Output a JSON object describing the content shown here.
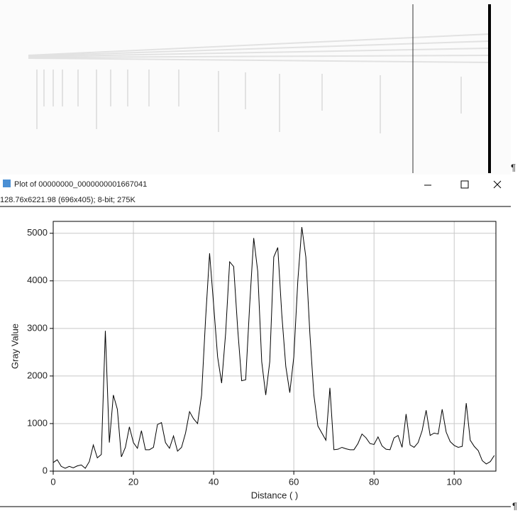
{
  "window": {
    "title": "Plot of 00000000_0000000001667041",
    "info": "128.76x6221.98 (696x405); 8-bit; 275K",
    "pilcrow_top": "¶",
    "pilcrow_bottom": "¶"
  },
  "chart_data": {
    "type": "line",
    "x_label": "Distance ( )",
    "y_label": "Gray Value",
    "color": "#000000",
    "grid": true,
    "x": [
      0,
      1,
      2,
      3,
      4,
      5,
      6,
      7,
      8,
      9,
      10,
      11,
      12,
      13,
      14,
      15,
      16,
      17,
      18,
      19,
      20,
      21,
      22,
      23,
      24,
      25,
      26,
      27,
      28,
      29,
      30,
      31,
      32,
      33,
      34,
      35,
      36,
      37,
      38,
      39,
      40,
      41,
      42,
      43,
      44,
      45,
      46,
      47,
      48,
      49,
      50,
      51,
      52,
      53,
      54,
      55,
      56,
      57,
      58,
      59,
      60,
      61,
      62,
      63,
      64,
      65,
      66,
      67,
      68,
      69,
      70,
      71,
      72,
      73,
      74,
      75,
      76,
      77,
      78,
      79,
      80,
      81,
      82,
      83,
      84,
      85,
      86,
      87,
      88,
      89,
      90,
      91,
      92,
      93,
      94,
      95,
      96,
      97,
      98,
      99,
      100,
      101,
      102,
      103,
      104,
      105,
      106,
      107,
      108,
      109,
      110
    ],
    "values": [
      180,
      240,
      100,
      60,
      100,
      70,
      110,
      130,
      60,
      200,
      550,
      280,
      350,
      2950,
      600,
      1600,
      1300,
      300,
      500,
      930,
      600,
      480,
      850,
      450,
      450,
      500,
      980,
      1020,
      600,
      480,
      740,
      420,
      500,
      800,
      1250,
      1100,
      1000,
      1600,
      3200,
      4580,
      3500,
      2400,
      1850,
      2900,
      4400,
      4300,
      3000,
      1900,
      1920,
      3500,
      4900,
      4200,
      2300,
      1600,
      2300,
      4500,
      4700,
      3300,
      2200,
      1650,
      2400,
      4000,
      5130,
      4500,
      2900,
      1600,
      950,
      800,
      650,
      1750,
      450,
      460,
      500,
      470,
      450,
      450,
      580,
      780,
      700,
      580,
      560,
      720,
      530,
      460,
      450,
      700,
      750,
      500,
      1200,
      550,
      500,
      600,
      850,
      1280,
      750,
      800,
      780,
      1300,
      820,
      620,
      540,
      500,
      520,
      1430,
      650,
      520,
      430,
      220,
      150,
      200,
      330
    ],
    "xlim": [
      0,
      110.4
    ],
    "ylim": [
      0,
      5250
    ],
    "xticks": [
      0,
      20,
      40,
      60,
      80,
      100
    ],
    "yticks": [
      0,
      1000,
      2000,
      3000,
      4000,
      5000
    ]
  }
}
